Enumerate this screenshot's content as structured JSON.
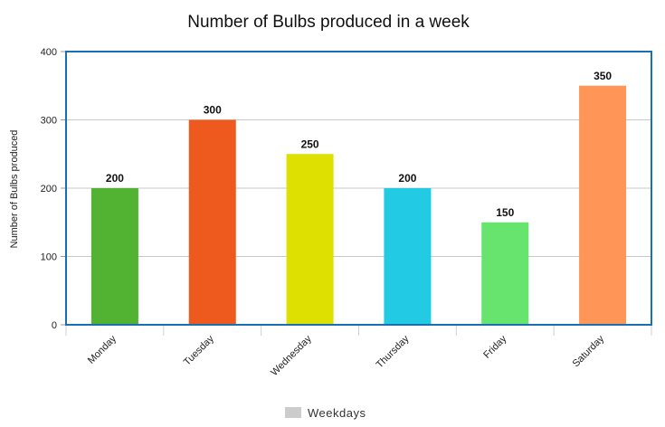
{
  "chart_data": {
    "type": "bar",
    "title": "Number of Bulbs produced in a week",
    "xlabel": "",
    "ylabel": "Number of Bulbs produced",
    "categories": [
      "Monday",
      "Tuesday",
      "Wednesday",
      "Thursday",
      "Friday",
      "Saturday"
    ],
    "series": [
      {
        "name": "Weekdays",
        "values": [
          200,
          300,
          250,
          200,
          150,
          350
        ]
      }
    ],
    "colors": [
      "#52b232",
      "#ee5a1e",
      "#dde000",
      "#22cbe3",
      "#66e46e",
      "#ff9657"
    ],
    "ylim": [
      0,
      400
    ],
    "yticks": [
      0,
      100,
      200,
      300,
      400
    ],
    "grid": true,
    "legend": {
      "position": "bottom-center",
      "color": "#cccccc"
    },
    "frame_color": "#1a6fb3"
  }
}
